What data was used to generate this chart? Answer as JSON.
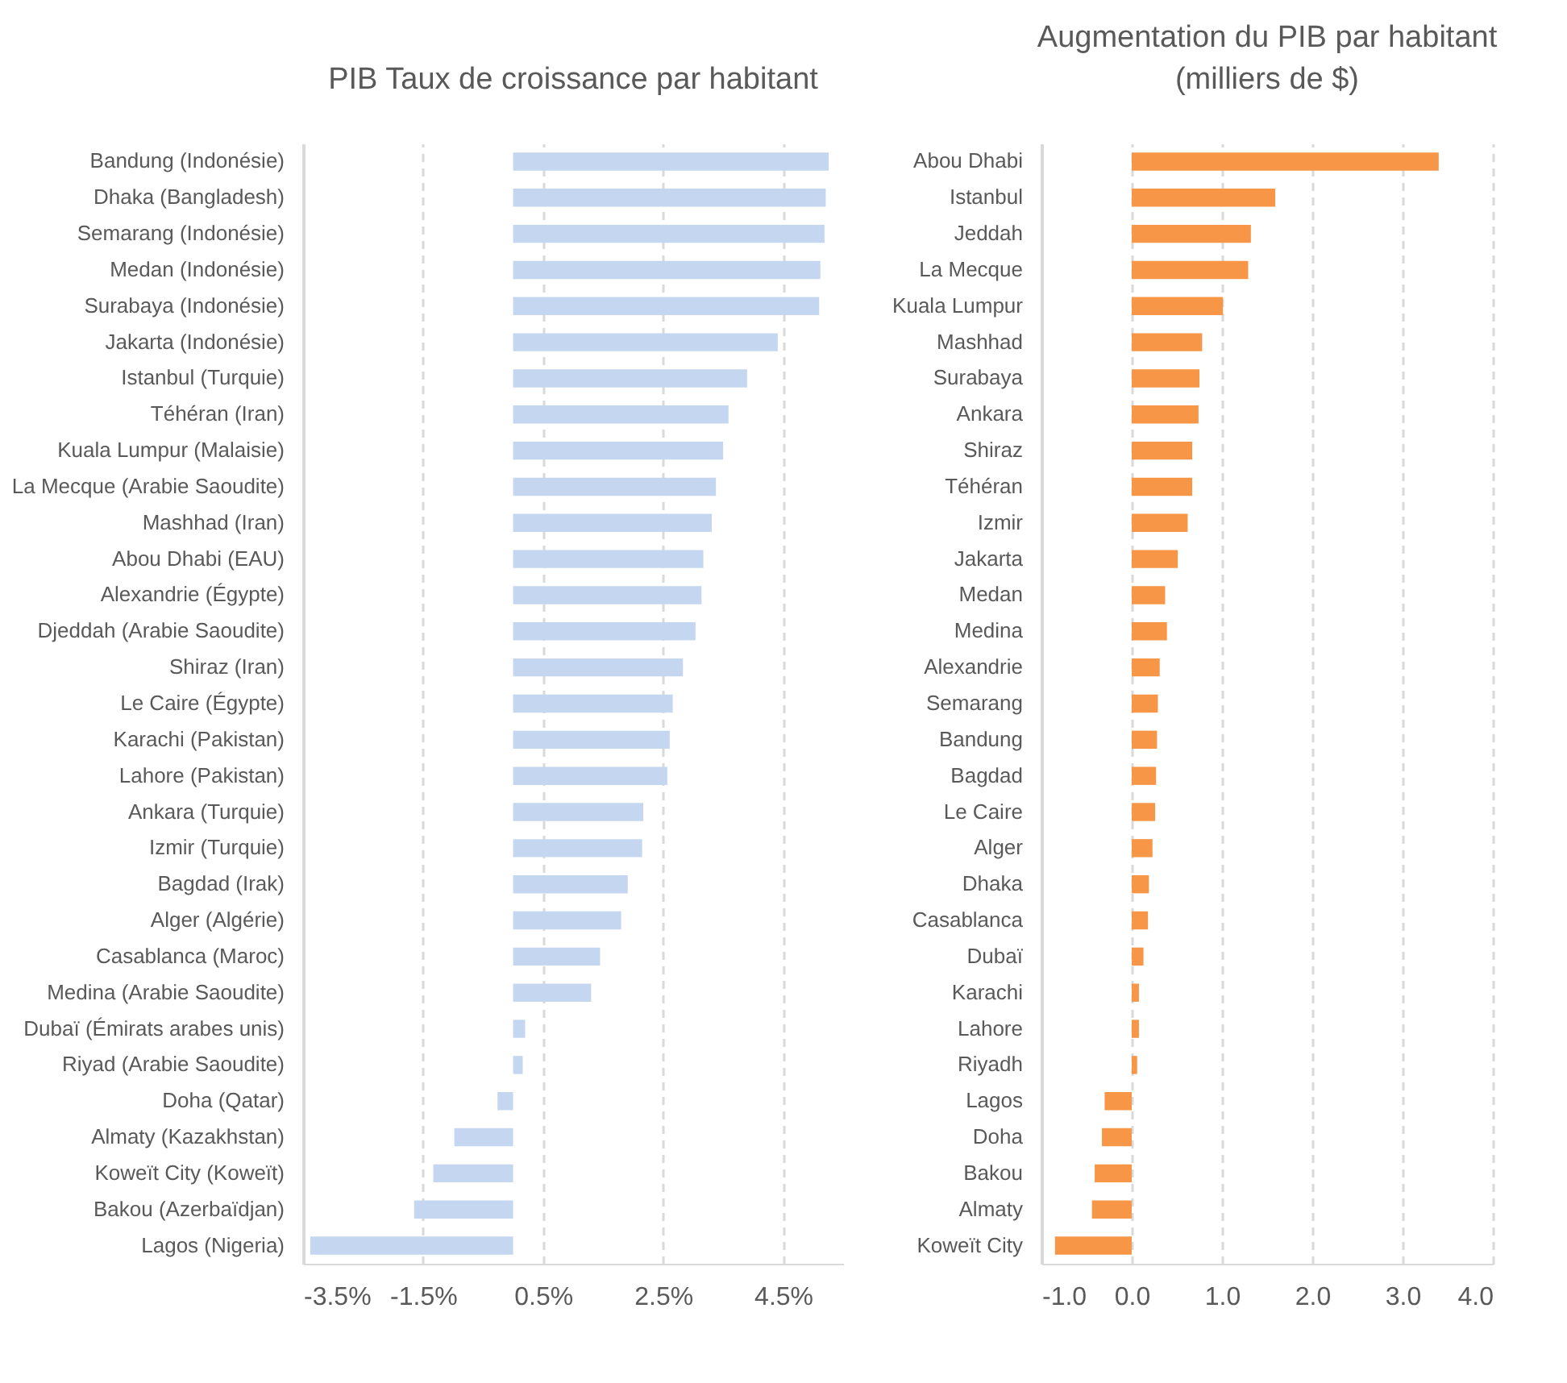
{
  "chart_data": [
    {
      "type": "bar",
      "orientation": "horizontal",
      "title": "PIB Taux de croissance par habitant",
      "categories": [
        "Bandung (Indonésie)",
        "Dhaka (Bangladesh)",
        "Semarang (Indonésie)",
        "Medan (Indonésie)",
        "Surabaya (Indonésie)",
        "Jakarta (Indonésie)",
        "Istanbul (Turquie)",
        "Téhéran (Iran)",
        "Kuala Lumpur (Malaisie)",
        "La Mecque (Arabie Saoudite)",
        "Mashhad (Iran)",
        "Abou Dhabi (EAU)",
        "Alexandrie (Égypte)",
        "Djeddah (Arabie Saoudite)",
        "Shiraz (Iran)",
        "Le Caire (Égypte)",
        "Karachi (Pakistan)",
        "Lahore (Pakistan)",
        "Ankara (Turquie)",
        "Izmir (Turquie)",
        "Bagdad (Irak)",
        "Alger (Algérie)",
        "Casablanca (Maroc)",
        "Medina (Arabie Saoudite)",
        "Dubaï (Émirats arabes unis)",
        "Riyad (Arabie Saoudite)",
        "Doha (Qatar)",
        "Almaty (Kazakhstan)",
        "Koweït City (Koweït)",
        "Bakou (Azerbaïdjan)",
        "Lagos (Nigeria)"
      ],
      "values": [
        5.26,
        5.21,
        5.19,
        5.12,
        5.1,
        4.41,
        3.9,
        3.59,
        3.5,
        3.38,
        3.31,
        3.17,
        3.14,
        3.04,
        2.83,
        2.66,
        2.61,
        2.57,
        2.17,
        2.15,
        1.91,
        1.8,
        1.45,
        1.3,
        0.2,
        0.16,
        -0.26,
        -0.98,
        -1.33,
        -1.65,
        -3.38
      ],
      "color": "#c5d7f0",
      "xlim": [
        -3.5,
        5.5
      ],
      "xticks": [
        {
          "value": -3.5,
          "label": "-3.5%"
        },
        {
          "value": -1.5,
          "label": "-1.5%"
        },
        {
          "value": 0.5,
          "label": "0.5%"
        },
        {
          "value": 2.5,
          "label": "2.5%"
        },
        {
          "value": 4.5,
          "label": "4.5%"
        }
      ],
      "grid": "x"
    },
    {
      "type": "bar",
      "orientation": "horizontal",
      "title": "Augmentation du PIB par habitant\n(milliers de $)",
      "categories": [
        "Abou Dhabi",
        "Istanbul",
        "Jeddah",
        "La Mecque",
        "Kuala Lumpur",
        "Mashhad",
        "Surabaya",
        "Ankara",
        "Shiraz",
        "Téhéran",
        "Izmir",
        "Jakarta",
        "Medan",
        "Medina",
        "Alexandrie",
        "Semarang",
        "Bandung",
        "Bagdad",
        "Le Caire",
        "Alger",
        "Dhaka",
        "Casablanca",
        "Dubaï",
        "Karachi",
        "Lahore",
        "Riyadh",
        "Lagos",
        "Doha",
        "Bakou",
        "Almaty",
        "Koweït City"
      ],
      "values": [
        3.4,
        1.59,
        1.32,
        1.29,
        1.01,
        0.78,
        0.75,
        0.74,
        0.67,
        0.67,
        0.62,
        0.51,
        0.37,
        0.39,
        0.31,
        0.29,
        0.28,
        0.27,
        0.26,
        0.23,
        0.19,
        0.18,
        0.13,
        0.08,
        0.08,
        0.06,
        -0.3,
        -0.33,
        -0.41,
        -0.44,
        -0.85
      ],
      "color": "#f79646",
      "xlim": [
        -1,
        4
      ],
      "xticks": [
        {
          "value": -1,
          "label": "-1.0"
        },
        {
          "value": 0,
          "label": "0.0"
        },
        {
          "value": 1,
          "label": "1.0"
        },
        {
          "value": 2,
          "label": "2.0"
        },
        {
          "value": 3,
          "label": "3.0"
        },
        {
          "value": 4,
          "label": "4.0"
        }
      ],
      "grid": "x"
    }
  ]
}
